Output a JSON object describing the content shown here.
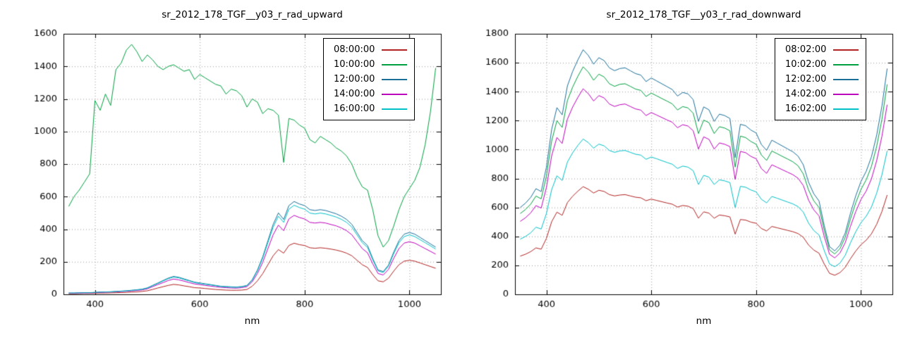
{
  "page": {
    "background": "#ffffff"
  },
  "chart_data": [
    {
      "type": "line",
      "title": "sr_2012_178_TGF__y03_r_rad_upward",
      "xlabel": "nm",
      "ylabel": "",
      "xlim": [
        340,
        1060
      ],
      "ylim": [
        0,
        1600
      ],
      "x_ticks": [
        400,
        600,
        800,
        1000
      ],
      "y_ticks": [
        0,
        200,
        400,
        600,
        800,
        1000,
        1200,
        1400,
        1600
      ],
      "grid": true,
      "legend_position": "top-right",
      "x": [
        350,
        360,
        370,
        380,
        390,
        400,
        410,
        420,
        430,
        440,
        450,
        460,
        470,
        480,
        490,
        500,
        510,
        520,
        530,
        540,
        550,
        560,
        570,
        580,
        590,
        600,
        610,
        620,
        630,
        640,
        650,
        660,
        670,
        680,
        690,
        700,
        710,
        720,
        730,
        740,
        750,
        760,
        770,
        780,
        790,
        800,
        810,
        820,
        830,
        840,
        850,
        860,
        870,
        880,
        890,
        900,
        910,
        920,
        930,
        940,
        950,
        960,
        970,
        980,
        990,
        1000,
        1010,
        1020,
        1030,
        1040,
        1050
      ],
      "series": [
        {
          "name": "08:00:00",
          "color": "#b22222",
          "values": [
            4,
            4,
            5,
            6,
            6,
            7,
            8,
            8,
            9,
            10,
            11,
            12,
            14,
            15,
            18,
            22,
            30,
            39,
            47,
            55,
            61,
            58,
            52,
            47,
            41,
            39,
            36,
            33,
            30,
            28,
            26,
            25,
            25,
            26,
            30,
            50,
            83,
            127,
            182,
            237,
            275,
            253,
            300,
            314,
            305,
            300,
            286,
            283,
            286,
            283,
            278,
            272,
            264,
            253,
            237,
            209,
            182,
            165,
            121,
            83,
            77,
            99,
            143,
            182,
            204,
            209,
            204,
            193,
            182,
            171,
            160
          ]
        },
        {
          "name": "10:00:00",
          "color": "#00a040",
          "values": [
            540,
            600,
            640,
            690,
            740,
            1190,
            1130,
            1230,
            1160,
            1380,
            1420,
            1500,
            1535,
            1490,
            1430,
            1470,
            1440,
            1400,
            1380,
            1400,
            1410,
            1390,
            1370,
            1380,
            1320,
            1350,
            1330,
            1310,
            1290,
            1280,
            1230,
            1260,
            1250,
            1220,
            1150,
            1200,
            1180,
            1110,
            1140,
            1130,
            1100,
            810,
            1080,
            1070,
            1040,
            1020,
            950,
            930,
            970,
            950,
            930,
            900,
            880,
            850,
            800,
            720,
            660,
            640,
            520,
            360,
            290,
            330,
            420,
            520,
            600,
            650,
            700,
            780,
            920,
            1120,
            1390
          ]
        },
        {
          "name": "12:00:00",
          "color": "#1a7099",
          "values": [
            8,
            8,
            9,
            10,
            10,
            12,
            14,
            15,
            16,
            18,
            20,
            22,
            25,
            28,
            32,
            40,
            55,
            70,
            85,
            100,
            110,
            105,
            95,
            85,
            75,
            70,
            65,
            60,
            55,
            50,
            48,
            46,
            45,
            48,
            55,
            90,
            150,
            230,
            330,
            430,
            500,
            460,
            545,
            570,
            555,
            545,
            520,
            515,
            520,
            515,
            505,
            495,
            480,
            460,
            430,
            380,
            330,
            300,
            220,
            150,
            140,
            180,
            260,
            330,
            370,
            380,
            370,
            350,
            330,
            310,
            290
          ]
        },
        {
          "name": "14:00:00",
          "color": "#bd00bd",
          "values": [
            7,
            7,
            8,
            9,
            9,
            10,
            12,
            13,
            14,
            15,
            17,
            19,
            21,
            24,
            27,
            34,
            47,
            60,
            72,
            85,
            94,
            89,
            81,
            72,
            64,
            60,
            55,
            51,
            47,
            43,
            41,
            39,
            38,
            41,
            47,
            77,
            128,
            196,
            281,
            366,
            425,
            391,
            463,
            485,
            472,
            463,
            442,
            438,
            442,
            438,
            429,
            421,
            408,
            391,
            366,
            323,
            281,
            255,
            187,
            128,
            119,
            153,
            221,
            281,
            315,
            323,
            315,
            298,
            281,
            264,
            247
          ]
        },
        {
          "name": "16:00:00",
          "color": "#00c0c8",
          "values": [
            8,
            8,
            9,
            10,
            10,
            12,
            13,
            14,
            15,
            17,
            19,
            21,
            24,
            27,
            31,
            38,
            53,
            67,
            82,
            96,
            106,
            101,
            91,
            82,
            72,
            67,
            62,
            58,
            53,
            48,
            46,
            44,
            43,
            46,
            53,
            86,
            144,
            221,
            317,
            413,
            480,
            442,
            523,
            547,
            533,
            523,
            499,
            494,
            499,
            494,
            485,
            475,
            461,
            442,
            413,
            365,
            317,
            288,
            211,
            144,
            134,
            173,
            250,
            317,
            355,
            365,
            355,
            336,
            317,
            298,
            278
          ]
        }
      ]
    },
    {
      "type": "line",
      "title": "sr_2012_178_TGF__y03_r_rad_downward",
      "xlabel": "nm",
      "ylabel": "",
      "xlim": [
        340,
        1060
      ],
      "ylim": [
        0,
        1800
      ],
      "x_ticks": [
        400,
        600,
        800,
        1000
      ],
      "y_ticks": [
        0,
        200,
        400,
        600,
        800,
        1000,
        1200,
        1400,
        1600,
        1800
      ],
      "grid": true,
      "legend_position": "top-right",
      "x": [
        350,
        360,
        370,
        380,
        390,
        400,
        410,
        420,
        430,
        440,
        450,
        460,
        470,
        480,
        490,
        500,
        510,
        520,
        530,
        540,
        550,
        560,
        570,
        580,
        590,
        600,
        610,
        620,
        630,
        640,
        650,
        660,
        670,
        680,
        690,
        700,
        710,
        720,
        730,
        740,
        750,
        760,
        770,
        780,
        790,
        800,
        810,
        820,
        830,
        840,
        850,
        860,
        870,
        880,
        890,
        900,
        910,
        920,
        930,
        940,
        950,
        960,
        970,
        980,
        990,
        1000,
        1010,
        1020,
        1030,
        1040,
        1050
      ],
      "series": [
        {
          "name": "08:02:00",
          "color": "#b22222",
          "values": [
            264,
            277,
            295,
            321,
            312,
            387,
            502,
            568,
            546,
            634,
            678,
            713,
            744,
            726,
            700,
            719,
            711,
            689,
            680,
            686,
            689,
            680,
            671,
            667,
            647,
            658,
            649,
            640,
            631,
            623,
            603,
            614,
            609,
            592,
            526,
            570,
            561,
            526,
            548,
            543,
            535,
            416,
            517,
            513,
            499,
            491,
            455,
            438,
            469,
            460,
            451,
            442,
            433,
            420,
            394,
            341,
            306,
            284,
            209,
            145,
            132,
            150,
            187,
            246,
            299,
            343,
            374,
            418,
            484,
            572,
            686
          ]
        },
        {
          "name": "10:02:00",
          "color": "#00a040",
          "values": [
            558,
            586,
            623,
            679,
            660,
            818,
            1060,
            1200,
            1153,
            1339,
            1432,
            1507,
            1572,
            1535,
            1479,
            1521,
            1502,
            1455,
            1437,
            1451,
            1455,
            1437,
            1418,
            1409,
            1367,
            1390,
            1372,
            1353,
            1335,
            1316,
            1274,
            1297,
            1288,
            1251,
            1111,
            1204,
            1186,
            1111,
            1158,
            1149,
            1130,
            879,
            1093,
            1083,
            1056,
            1037,
            963,
            925,
            990,
            972,
            953,
            935,
            916,
            888,
            832,
            721,
            646,
            600,
            442,
            307,
            279,
            316,
            395,
            521,
            632,
            725,
            791,
            884,
            1023,
            1209,
            1451
          ]
        },
        {
          "name": "12:02:00",
          "color": "#1a7099",
          "values": [
            600,
            630,
            670,
            730,
            710,
            880,
            1140,
            1290,
            1240,
            1440,
            1540,
            1620,
            1690,
            1650,
            1590,
            1635,
            1615,
            1565,
            1545,
            1560,
            1565,
            1545,
            1525,
            1515,
            1470,
            1495,
            1475,
            1455,
            1435,
            1415,
            1370,
            1395,
            1385,
            1345,
            1195,
            1295,
            1275,
            1195,
            1245,
            1235,
            1215,
            945,
            1175,
            1165,
            1135,
            1115,
            1035,
            995,
            1065,
            1045,
            1025,
            1005,
            985,
            955,
            895,
            775,
            695,
            645,
            475,
            330,
            300,
            340,
            425,
            560,
            680,
            780,
            850,
            950,
            1100,
            1300,
            1560
          ]
        },
        {
          "name": "14:02:00",
          "color": "#bd00bd",
          "values": [
            504,
            529,
            563,
            613,
            596,
            739,
            958,
            1084,
            1042,
            1210,
            1294,
            1361,
            1420,
            1386,
            1336,
            1373,
            1357,
            1315,
            1298,
            1310,
            1315,
            1298,
            1281,
            1273,
            1235,
            1256,
            1239,
            1222,
            1205,
            1189,
            1151,
            1172,
            1163,
            1130,
            1004,
            1088,
            1071,
            1004,
            1046,
            1037,
            1021,
            794,
            987,
            979,
            953,
            937,
            869,
            836,
            895,
            878,
            861,
            844,
            827,
            802,
            752,
            651,
            584,
            542,
            399,
            277,
            252,
            286,
            357,
            470,
            571,
            655,
            714,
            798,
            924,
            1092,
            1310
          ]
        },
        {
          "name": "16:02:00",
          "color": "#00c0c8",
          "values": [
            381,
            400,
            425,
            464,
            451,
            559,
            724,
            819,
            787,
            914,
            978,
            1029,
            1073,
            1048,
            1010,
            1038,
            1026,
            994,
            981,
            991,
            994,
            981,
            968,
            962,
            933,
            949,
            937,
            924,
            911,
            899,
            870,
            886,
            879,
            854,
            759,
            822,
            810,
            759,
            791,
            784,
            772,
            600,
            746,
            740,
            721,
            708,
            657,
            632,
            676,
            664,
            651,
            638,
            625,
            606,
            568,
            492,
            441,
            410,
            302,
            210,
            191,
            216,
            270,
            356,
            432,
            495,
            540,
            603,
            699,
            826,
            991
          ]
        }
      ]
    }
  ]
}
